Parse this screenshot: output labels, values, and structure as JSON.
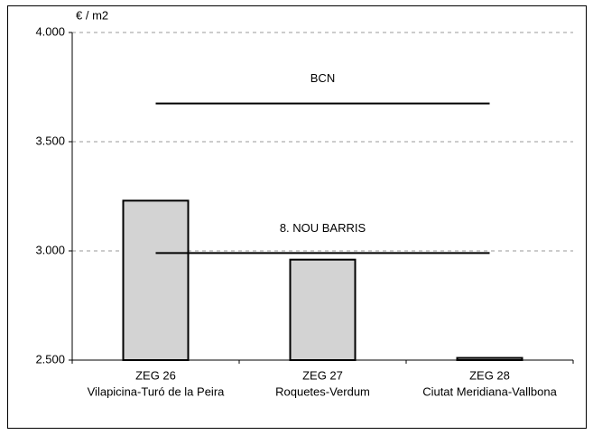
{
  "chart_data": {
    "type": "bar",
    "y_label": "€ / m2",
    "categories": [
      [
        "ZEG 26",
        "Vilapicina-Turó de la Peira"
      ],
      [
        "ZEG 27",
        "Roquetes-Verdum"
      ],
      [
        "ZEG 28",
        "Ciutat Meridiana-Vallbona"
      ]
    ],
    "values": [
      3230,
      2960,
      2510
    ],
    "color": "#d3d3d3",
    "reference_lines": [
      {
        "name": "BCN",
        "value": 3675
      },
      {
        "name": "8. NOU BARRIS",
        "value": 2990
      }
    ],
    "ylim": [
      2500,
      4000
    ],
    "yticks": [
      {
        "value": 2500,
        "label": "2.500"
      },
      {
        "value": 3000,
        "label": "3.000"
      },
      {
        "value": 3500,
        "label": "3.500"
      },
      {
        "value": 4000,
        "label": "4.000"
      }
    ],
    "grid": true
  }
}
